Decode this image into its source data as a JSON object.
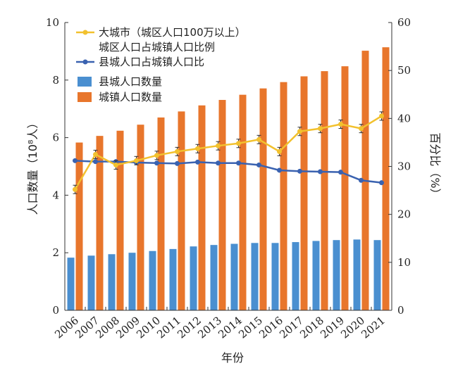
{
  "chart_data": {
    "type": "bar",
    "xlabel": "年份",
    "ylabel_left": "人口数量（10⁸人）",
    "ylabel_right": "百分比（%）",
    "ylim_left": [
      0,
      10
    ],
    "ylim_right": [
      0,
      60
    ],
    "yticks_left": [
      "0",
      "2",
      "4",
      "6",
      "8",
      "10"
    ],
    "yticks_right": [
      "0",
      "10",
      "20",
      "30",
      "40",
      "50",
      "60"
    ],
    "categories": [
      "2006",
      "2007",
      "2008",
      "2009",
      "2010",
      "2011",
      "2012",
      "2013",
      "2014",
      "2015",
      "2016",
      "2017",
      "2018",
      "2019",
      "2020",
      "2021"
    ],
    "colors": {
      "county_bar": "#4a8fd0",
      "urban_bar": "#e8762c",
      "bigcity_line": "#f2c12e",
      "county_line": "#3a62b0"
    },
    "series": [
      {
        "name": "县城人口数量",
        "axis": "left",
        "kind": "bar",
        "values": [
          1.83,
          1.9,
          1.95,
          2.0,
          2.06,
          2.13,
          2.22,
          2.27,
          2.31,
          2.34,
          2.34,
          2.37,
          2.41,
          2.44,
          2.46,
          2.44
        ]
      },
      {
        "name": "城镇人口数量",
        "axis": "left",
        "kind": "bar",
        "values": [
          5.83,
          6.06,
          6.24,
          6.45,
          6.7,
          6.91,
          7.12,
          7.31,
          7.49,
          7.71,
          7.93,
          8.13,
          8.31,
          8.48,
          9.02,
          9.14
        ]
      },
      {
        "name": "大城市（城区人口100万以上）城区人口占城镇人口比例",
        "axis": "right",
        "kind": "line",
        "values": [
          25.2,
          32.5,
          30.3,
          31.2,
          32.3,
          33.1,
          33.7,
          34.3,
          34.8,
          35.6,
          33.1,
          37.3,
          37.9,
          38.8,
          37.9,
          40.5
        ]
      },
      {
        "name": "县城人口占城镇人口比",
        "axis": "right",
        "kind": "line",
        "values": [
          31.2,
          31.0,
          31.0,
          30.8,
          30.7,
          30.6,
          30.9,
          30.7,
          30.7,
          30.3,
          29.2,
          29.0,
          28.9,
          28.8,
          27.1,
          26.6
        ]
      }
    ],
    "legend": {
      "placement": "top-left",
      "bigcity_line_1": "大城市（城区人口100万以上）",
      "bigcity_line_2": "城区人口占城镇人口比例",
      "county_line": "县城人口占城镇人口比",
      "county_bar": "县城人口数量",
      "urban_bar": "城镇人口数量"
    }
  }
}
